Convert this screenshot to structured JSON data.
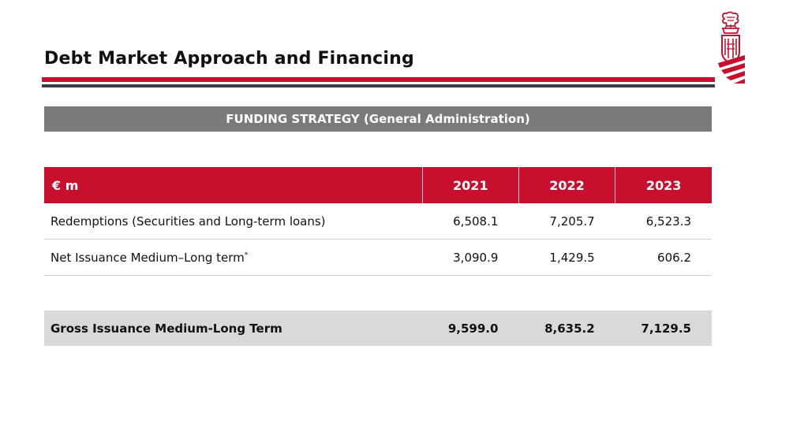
{
  "header": {
    "title": "Debt Market Approach and Financing"
  },
  "section": {
    "band_title": "FUNDING STRATEGY  (General Administration)"
  },
  "table": {
    "unit_label": "€ m",
    "years": [
      "2021",
      "2022",
      "2023"
    ],
    "rows": [
      {
        "label": "Redemptions (Securities and Long-term loans)",
        "footnote_mark": "",
        "values": [
          "6,508.1",
          "7,205.7",
          "6,523.3"
        ]
      },
      {
        "label": "Net Issuance Medium–Long term",
        "footnote_mark": "*",
        "values": [
          "3,090.9",
          "1,429.5",
          "606.2"
        ]
      }
    ],
    "total": {
      "label": "Gross Issuance Medium-Long Term",
      "values": [
        "9,599.0",
        "8,635.2",
        "7,129.5"
      ]
    }
  },
  "colors": {
    "accent_red": "#c8102e",
    "band_gray": "#7a7a7a",
    "total_row_gray": "#d9d9d9",
    "rule_dark": "#3a3f4a"
  },
  "icons": {
    "logo": "generalitat-valenciana-crest"
  }
}
